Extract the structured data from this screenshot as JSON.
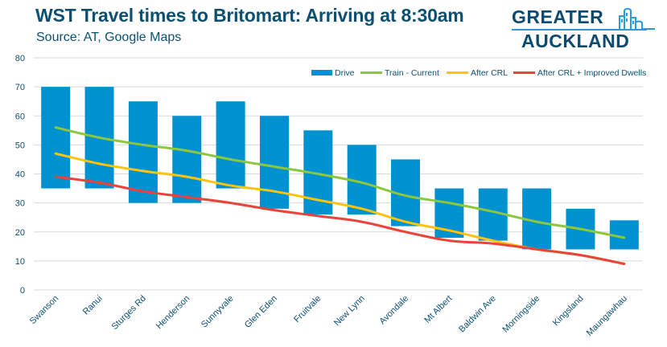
{
  "header": {
    "title": "WST Travel times to Britomart: Arriving at 8:30am",
    "subtitle": "Source: AT, Google Maps"
  },
  "logo": {
    "line1": "GREATER",
    "line2": "AUCKLAND",
    "icon": "city-buildings-icon",
    "colors": {
      "text": "#0d4a6f",
      "accent": "#2a9ad8"
    }
  },
  "chart_data": {
    "type": "bar",
    "title": "WST Travel times to Britomart: Arriving at 8:30am",
    "subtitle": "Source: AT, Google Maps",
    "xlabel": "",
    "ylabel": "",
    "ylim": [
      0,
      80
    ],
    "yticks": [
      0,
      10,
      20,
      30,
      40,
      50,
      60,
      70,
      80
    ],
    "grid": true,
    "legend_position": "top-right",
    "categories": [
      "Swanson",
      "Ranui",
      "Sturges Rd",
      "Henderson",
      "Sunnyvale",
      "Glen Eden",
      "Fruitvale",
      "New Lynn",
      "Avondale",
      "Mt Albert",
      "Baldwin Ave",
      "Morningside",
      "Kingsland",
      "Maungawhau"
    ],
    "series": [
      {
        "name": "Drive",
        "kind": "floating-bar",
        "color": "#0091d0",
        "low": [
          35,
          35,
          30,
          30,
          35,
          28,
          26,
          26,
          22,
          18,
          17,
          14,
          14,
          14
        ],
        "high": [
          70,
          70,
          65,
          60,
          65,
          60,
          55,
          50,
          45,
          35,
          35,
          35,
          28,
          24
        ]
      },
      {
        "name": "Train - Current",
        "kind": "line",
        "color": "#8dc63f",
        "values": [
          56,
          52.5,
          50,
          48,
          45,
          42.5,
          40,
          37,
          32.5,
          30,
          27,
          23.5,
          21,
          18
        ]
      },
      {
        "name": "After CRL",
        "kind": "line",
        "color": "#ffc20e",
        "values": [
          47,
          43.5,
          41,
          39,
          36,
          34,
          31,
          28,
          23.5,
          20.5,
          17,
          14,
          12,
          9
        ]
      },
      {
        "name": "After CRL + Improved Dwells",
        "kind": "line",
        "color": "#e8443a",
        "values": [
          39,
          37,
          34,
          32,
          30,
          27.5,
          25.5,
          23.5,
          20,
          17,
          16,
          14,
          12,
          9
        ]
      }
    ]
  }
}
